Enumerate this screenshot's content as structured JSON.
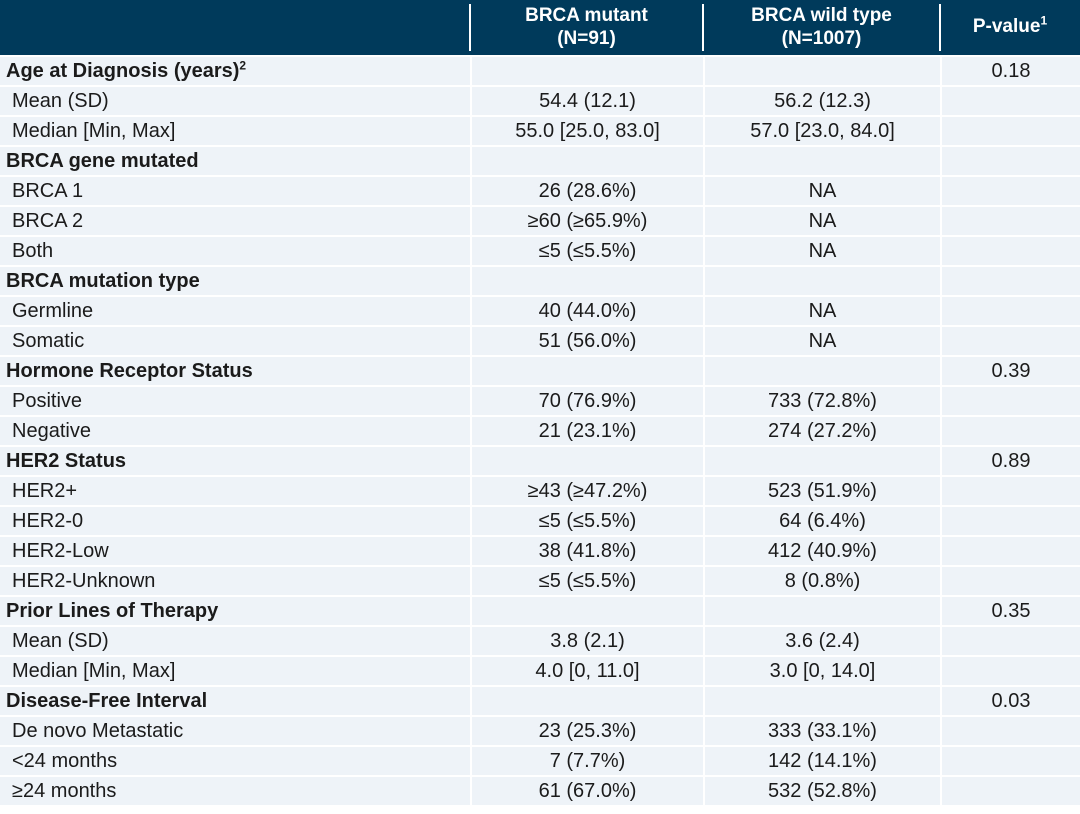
{
  "colors": {
    "header_bg": "#003a5b",
    "header_text": "#ffffff",
    "row_bg": "#eef3f8",
    "divider": "#ffffff",
    "body_text": "#1b1b1b"
  },
  "chart_data": {
    "type": "table",
    "columns": [
      {
        "label": "",
        "sublabel": "",
        "sup": ""
      },
      {
        "label": "BRCA mutant",
        "sublabel": "(N=91)",
        "sup": ""
      },
      {
        "label": "BRCA wild type",
        "sublabel": "(N=1007)",
        "sup": ""
      },
      {
        "label": "P-value",
        "sublabel": "",
        "sup": "1"
      }
    ],
    "rows": [
      {
        "label": "Age at Diagnosis (years)",
        "sup": "2",
        "section": true,
        "brca_mutant": "",
        "brca_wild_type": "",
        "p_value": "0.18"
      },
      {
        "label": "Mean (SD)",
        "sup": "",
        "section": false,
        "brca_mutant": "54.4 (12.1)",
        "brca_wild_type": "56.2 (12.3)",
        "p_value": ""
      },
      {
        "label": "Median [Min, Max]",
        "sup": "",
        "section": false,
        "brca_mutant": "55.0 [25.0, 83.0]",
        "brca_wild_type": "57.0 [23.0, 84.0]",
        "p_value": ""
      },
      {
        "label": "BRCA gene mutated",
        "sup": "",
        "section": true,
        "brca_mutant": "",
        "brca_wild_type": "",
        "p_value": ""
      },
      {
        "label": "BRCA 1",
        "sup": "",
        "section": false,
        "brca_mutant": "26 (28.6%)",
        "brca_wild_type": "NA",
        "p_value": ""
      },
      {
        "label": "BRCA 2",
        "sup": "",
        "section": false,
        "brca_mutant": "≥60 (≥65.9%)",
        "brca_wild_type": "NA",
        "p_value": ""
      },
      {
        "label": "Both",
        "sup": "",
        "section": false,
        "brca_mutant": "≤5 (≤5.5%)",
        "brca_wild_type": "NA",
        "p_value": ""
      },
      {
        "label": "BRCA mutation type",
        "sup": "",
        "section": true,
        "brca_mutant": "",
        "brca_wild_type": "",
        "p_value": ""
      },
      {
        "label": "Germline",
        "sup": "",
        "section": false,
        "brca_mutant": "40 (44.0%)",
        "brca_wild_type": "NA",
        "p_value": ""
      },
      {
        "label": "Somatic",
        "sup": "",
        "section": false,
        "brca_mutant": "51 (56.0%)",
        "brca_wild_type": "NA",
        "p_value": ""
      },
      {
        "label": "Hormone Receptor Status",
        "sup": "",
        "section": true,
        "brca_mutant": "",
        "brca_wild_type": "",
        "p_value": "0.39"
      },
      {
        "label": "Positive",
        "sup": "",
        "section": false,
        "brca_mutant": "70 (76.9%)",
        "brca_wild_type": "733 (72.8%)",
        "p_value": ""
      },
      {
        "label": "Negative",
        "sup": "",
        "section": false,
        "brca_mutant": "21 (23.1%)",
        "brca_wild_type": "274 (27.2%)",
        "p_value": ""
      },
      {
        "label": "HER2 Status",
        "sup": "",
        "section": true,
        "brca_mutant": "",
        "brca_wild_type": "",
        "p_value": "0.89"
      },
      {
        "label": "HER2+",
        "sup": "",
        "section": false,
        "brca_mutant": "≥43 (≥47.2%)",
        "brca_wild_type": "523 (51.9%)",
        "p_value": ""
      },
      {
        "label": "HER2-0",
        "sup": "",
        "section": false,
        "brca_mutant": "≤5 (≤5.5%)",
        "brca_wild_type": "64 (6.4%)",
        "p_value": ""
      },
      {
        "label": "HER2-Low",
        "sup": "",
        "section": false,
        "brca_mutant": "38 (41.8%)",
        "brca_wild_type": "412 (40.9%)",
        "p_value": ""
      },
      {
        "label": "HER2-Unknown",
        "sup": "",
        "section": false,
        "brca_mutant": "≤5 (≤5.5%)",
        "brca_wild_type": "8 (0.8%)",
        "p_value": ""
      },
      {
        "label": "Prior Lines of Therapy",
        "sup": "",
        "section": true,
        "brca_mutant": "",
        "brca_wild_type": "",
        "p_value": "0.35"
      },
      {
        "label": "Mean (SD)",
        "sup": "",
        "section": false,
        "brca_mutant": "3.8 (2.1)",
        "brca_wild_type": "3.6 (2.4)",
        "p_value": ""
      },
      {
        "label": "Median [Min, Max]",
        "sup": "",
        "section": false,
        "brca_mutant": "4.0 [0, 11.0]",
        "brca_wild_type": "3.0 [0, 14.0]",
        "p_value": ""
      },
      {
        "label": "Disease-Free Interval",
        "sup": "",
        "section": true,
        "brca_mutant": "",
        "brca_wild_type": "",
        "p_value": "0.03"
      },
      {
        "label": "De novo Metastatic",
        "sup": "",
        "section": false,
        "brca_mutant": "23 (25.3%)",
        "brca_wild_type": "333 (33.1%)",
        "p_value": ""
      },
      {
        "label": "<24 months",
        "sup": "",
        "section": false,
        "brca_mutant": "7 (7.7%)",
        "brca_wild_type": "142 (14.1%)",
        "p_value": ""
      },
      {
        "label": "≥24 months",
        "sup": "",
        "section": false,
        "brca_mutant": "61 (67.0%)",
        "brca_wild_type": "532 (52.8%)",
        "p_value": ""
      }
    ]
  }
}
